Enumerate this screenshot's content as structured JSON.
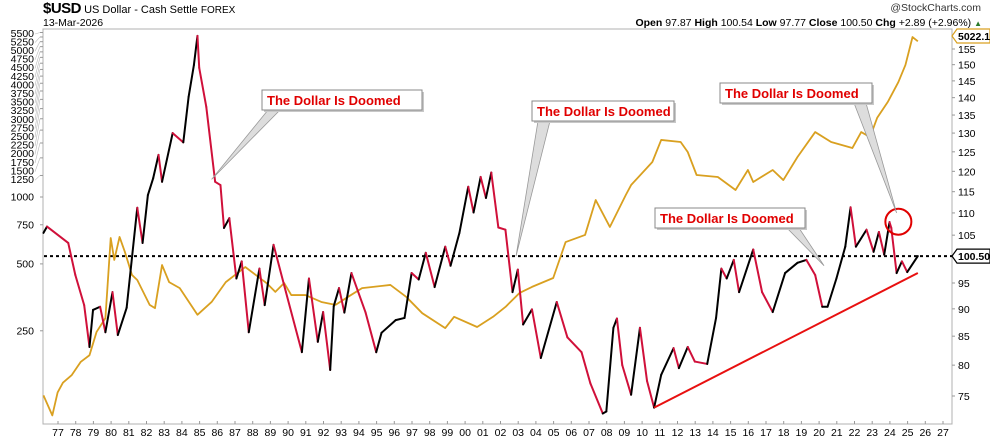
{
  "header": {
    "symbol": "$USD",
    "name": "US Dollar - Cash Settle",
    "exchange": "FOREX",
    "date": "13-Mar-2026",
    "watermark": "@StockCharts.com",
    "open_label": "Open",
    "open": "97.87",
    "high_label": "High",
    "high": "100.54",
    "low_label": "Low",
    "low": "97.77",
    "close_label": "Close",
    "close": "100.50",
    "chg_label": "Chg",
    "chg": "+2.89 (+2.96%)",
    "chg_icon": "up-triangle-icon"
  },
  "colors": {
    "usd_up": "#000000",
    "usd_down": "#d0103a",
    "gold": "#d9a020",
    "annotation": "#e00000",
    "trendline": "#e81010"
  },
  "chart_data": {
    "type": "line",
    "x_tick_labels": [
      "77",
      "78",
      "79",
      "80",
      "81",
      "82",
      "83",
      "84",
      "85",
      "86",
      "87",
      "88",
      "89",
      "90",
      "91",
      "92",
      "93",
      "94",
      "95",
      "96",
      "97",
      "98",
      "99",
      "00",
      "01",
      "02",
      "03",
      "04",
      "05",
      "06",
      "07",
      "08",
      "09",
      "10",
      "11",
      "12",
      "13",
      "14",
      "15",
      "16",
      "17",
      "18",
      "19",
      "20",
      "21",
      "22",
      "23",
      "24",
      "25",
      "26",
      "27"
    ],
    "xlim": [
      1977,
      2027
    ],
    "left_axis": {
      "scale": "log",
      "range": [
        100,
        5700
      ],
      "ticks": [
        5500,
        5250,
        5000,
        4750,
        4500,
        4250,
        4000,
        3750,
        3500,
        3250,
        3000,
        2750,
        2500,
        2250,
        2000,
        1750,
        1500,
        1250,
        1000,
        750,
        500,
        250
      ]
    },
    "right_axis": {
      "scale": "log",
      "range": [
        72,
        158
      ],
      "ticks": [
        155,
        150,
        145,
        140,
        135,
        130,
        125,
        120,
        115,
        110,
        105,
        95,
        90,
        85,
        80,
        75
      ]
    },
    "grid": false,
    "last_value_tags": {
      "gold": "5022.1",
      "usd": "100.50"
    },
    "reference_line": {
      "axis": "right",
      "value": 100.5,
      "style": "dotted"
    },
    "series": [
      {
        "key": "usd",
        "axis": "right",
        "coloring": "black rising / red falling",
        "x": [
          1976.8,
          1977.0,
          1978.2,
          1978.6,
          1979.1,
          1979.4,
          1979.6,
          1980.0,
          1980.3,
          1980.7,
          1981.0,
          1981.5,
          1982.1,
          1982.4,
          1982.7,
          1983.0,
          1983.3,
          1983.5,
          1984.1,
          1984.7,
          1985.0,
          1985.3,
          1985.5,
          1985.6,
          1986.0,
          1986.5,
          1986.8,
          1987.0,
          1987.3,
          1987.7,
          1988.0,
          1988.4,
          1989.0,
          1989.3,
          1989.8,
          1990.5,
          1991.4,
          1991.8,
          1992.3,
          1992.6,
          1993.0,
          1993.2,
          1993.5,
          1993.8,
          1994.2,
          1995.0,
          1995.6,
          1995.9,
          1996.7,
          1997.2,
          1997.6,
          1998.0,
          1998.4,
          1998.9,
          1999.5,
          1999.8,
          2000.3,
          2000.8,
          2001.1,
          2001.5,
          2001.8,
          2002.1,
          2002.5,
          2002.9,
          2003.3,
          2003.6,
          2003.9,
          2004.4,
          2004.9,
          2005.8,
          2006.4,
          2007.2,
          2007.7,
          2008.4,
          2008.6,
          2009.0,
          2009.2,
          2009.5,
          2010.0,
          2010.5,
          2010.9,
          2011.3,
          2011.7,
          2012.4,
          2012.7,
          2013.2,
          2013.6,
          2014.3,
          2014.8,
          2015.1,
          2015.4,
          2015.8,
          2016.1,
          2016.9,
          2017.4,
          2018.0,
          2018.7,
          2019.4,
          2019.9,
          2020.4,
          2020.8,
          2021.1,
          2021.6,
          2022.1,
          2022.4,
          2022.7,
          2023.3,
          2023.7,
          2024.0,
          2024.3,
          2024.6,
          2024.7,
          2025.0,
          2025.3,
          2025.6,
          2026.2
        ],
        "values": [
          105.5,
          106.9,
          103.3,
          96.6,
          90.7,
          83.1,
          89.8,
          90.4,
          85.7,
          93.2,
          85.2,
          90.2,
          111.2,
          103.3,
          114.2,
          118.3,
          124.2,
          117.4,
          130.0,
          127.5,
          140.2,
          149.9,
          159.3,
          149.0,
          137.3,
          117.4,
          116.6,
          106.6,
          108.8,
          95.9,
          99.4,
          85.7,
          97.9,
          90.7,
          102.9,
          93.2,
          82.2,
          95.9,
          84.0,
          89.4,
          79.2,
          90.5,
          94.0,
          89.3,
          97.0,
          89.3,
          82.2,
          85.6,
          87.9,
          88.3,
          97.0,
          95.7,
          101.2,
          94.2,
          102.5,
          98.5,
          105.5,
          116.2,
          110.1,
          118.6,
          113.5,
          119.7,
          106.7,
          106.2,
          93.2,
          97.7,
          87.1,
          89.9,
          81.2,
          91.3,
          84.8,
          82.2,
          77.0,
          72.3,
          72.6,
          86.5,
          88.2,
          80.0,
          75.2,
          86.5,
          77.4,
          73.2,
          78.4,
          82.9,
          79.5,
          83.1,
          80.6,
          80.2,
          88.3,
          97.9,
          95.9,
          99.7,
          93.2,
          101.9,
          93.2,
          89.4,
          97.0,
          99.1,
          99.7,
          96.6,
          90.4,
          90.4,
          95.9,
          102.5,
          111.3,
          102.5,
          106.2,
          101.4,
          105.7,
          100.8,
          107.9,
          106.6,
          97.0,
          99.4,
          97.2,
          100.5
        ]
      },
      {
        "key": "gold",
        "axis": "left",
        "x": [
          1976.8,
          1977.3,
          1977.6,
          1977.9,
          1978.4,
          1978.9,
          1979.4,
          1979.8,
          1980.3,
          1980.6,
          1980.8,
          1981.1,
          1981.4,
          1981.8,
          1982.1,
          1982.8,
          1983.1,
          1983.5,
          1983.9,
          1984.5,
          1985.5,
          1986.3,
          1987.1,
          1988.2,
          1989.4,
          1989.9,
          1990.4,
          1990.8,
          1991.6,
          1992.5,
          1993.3,
          1994.0,
          1994.8,
          1996.4,
          1997.3,
          1998.2,
          1999.5,
          2000.0,
          2001.3,
          2002.2,
          2002.9,
          2003.7,
          2004.4,
          2005.6,
          2006.3,
          2007.4,
          2008.0,
          2008.8,
          2009.7,
          2010.0,
          2011.2,
          2011.7,
          2012.8,
          2013.2,
          2013.7,
          2014.9,
          2015.9,
          2016.6,
          2016.9,
          2018.0,
          2018.6,
          2019.4,
          2020.4,
          2021.3,
          2022.5,
          2023.0,
          2023.5,
          2023.9,
          2024.5,
          2025.1,
          2025.5,
          2025.9,
          2026.2
        ],
        "values": [
          128,
          104,
          132,
          146,
          158,
          181,
          194,
          247,
          285,
          654,
          521,
          661,
          566,
          446,
          423,
          327,
          316,
          494,
          414,
          389,
          295,
          337,
          414,
          484,
          410,
          374,
          410,
          362,
          362,
          337,
          327,
          355,
          389,
          402,
          355,
          300,
          257,
          289,
          260,
          289,
          320,
          370,
          394,
          432,
          627,
          675,
          969,
          733,
          1021,
          1132,
          1437,
          1806,
          1768,
          1594,
          1256,
          1230,
          1075,
          1323,
          1168,
          1323,
          1192,
          1514,
          1960,
          1768,
          1661,
          1960,
          1861,
          2270,
          2676,
          3290,
          3929,
          5248,
          5022
        ]
      }
    ],
    "annotations": [
      {
        "text": "The Dollar Is Doomed",
        "at_year": 1986.3,
        "at_value": 118
      },
      {
        "text": "The Dollar Is Doomed",
        "at_year": 2003.5,
        "at_value": 100.5
      },
      {
        "text": "The Dollar Is Doomed",
        "at_year": 2025.0,
        "at_value": 110
      },
      {
        "text": "The Dollar Is Doomed",
        "at_year": 2020.9,
        "at_value": 98.5
      }
    ],
    "highlight_circle": {
      "year": 2025.1,
      "value": 108
    },
    "trendline": {
      "axis": "right",
      "from": [
        2011.3,
        73.2
      ],
      "to": [
        2026.2,
        97.0
      ]
    }
  }
}
